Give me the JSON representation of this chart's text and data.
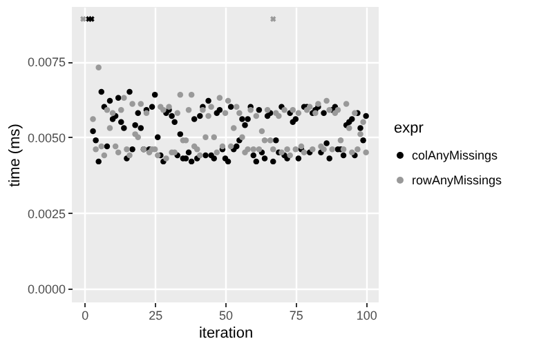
{
  "chart_data": {
    "type": "scatter",
    "xlabel": "iteration",
    "ylabel": "time (ms)",
    "legend_title": "expr",
    "legend": "right",
    "grid": true,
    "marker": "circle",
    "xlim": [
      -4.5,
      104.5
    ],
    "xticks": [
      0,
      25,
      50,
      75,
      100
    ],
    "ylim": [
      -0.00045,
      0.0093
    ],
    "yticks": [
      {
        "value": 0,
        "label": "0.0000"
      },
      {
        "value": 0.0025,
        "label": "0.0025"
      },
      {
        "value": 0.005,
        "label": "0.0050"
      },
      {
        "value": 0.0075,
        "label": "0.0075"
      }
    ],
    "series": [
      {
        "name": "colAnyMissings",
        "color": "#000000",
        "x": [
          3,
          4,
          5,
          6,
          7,
          8,
          9,
          10,
          11,
          12,
          13,
          14,
          15,
          16,
          17,
          18,
          19,
          20,
          21,
          22,
          23,
          24,
          25,
          26,
          27,
          28,
          29,
          30,
          31,
          32,
          33,
          34,
          35,
          36,
          37,
          38,
          39,
          40,
          41,
          42,
          43,
          44,
          45,
          46,
          47,
          48,
          49,
          50,
          51,
          52,
          53,
          54,
          55,
          56,
          57,
          58,
          59,
          60,
          61,
          62,
          63,
          64,
          65,
          66,
          67,
          68,
          69,
          70,
          71,
          72,
          73,
          74,
          75,
          76,
          77,
          78,
          79,
          80,
          81,
          82,
          83,
          84,
          85,
          86,
          87,
          88,
          89,
          90,
          91,
          92,
          93,
          94,
          95,
          96,
          97,
          98,
          99,
          100
        ],
        "values": [
          0.0052,
          0.0049,
          0.0042,
          0.0065,
          0.006,
          0.0047,
          0.0062,
          0.0056,
          0.0057,
          0.0063,
          0.0055,
          0.0053,
          0.0043,
          0.0065,
          0.0046,
          0.0054,
          0.0058,
          0.0053,
          0.0046,
          0.0059,
          0.0046,
          0.006,
          0.0064,
          0.005,
          0.0044,
          0.0042,
          0.0058,
          0.0059,
          0.0057,
          0.0055,
          0.0044,
          0.0051,
          0.0043,
          0.0043,
          0.0045,
          0.0042,
          0.0056,
          0.0043,
          0.0057,
          0.006,
          0.0044,
          0.0062,
          0.0044,
          0.0043,
          0.0058,
          0.0059,
          0.0046,
          0.0043,
          0.0042,
          0.006,
          0.0046,
          0.0047,
          0.0049,
          0.0056,
          0.0054,
          0.0056,
          0.006,
          0.0044,
          0.0042,
          0.0059,
          0.0045,
          0.0043,
          0.0057,
          0.0058,
          0.0042,
          0.0049,
          0.0045,
          0.006,
          0.0044,
          0.0043,
          0.0058,
          0.0055,
          0.0056,
          0.0043,
          0.0046,
          0.006,
          0.006,
          0.0045,
          0.0058,
          0.0059,
          0.006,
          0.0045,
          0.0058,
          0.0048,
          0.0043,
          0.0059,
          0.006,
          0.0046,
          0.0046,
          0.0044,
          0.0054,
          0.0055,
          0.0056,
          0.0044,
          0.0058,
          0.0053,
          0.0049,
          0.0057
        ]
      },
      {
        "name": "rowAnyMissings",
        "color": "#999999",
        "x": [
          3,
          4,
          5,
          6,
          7,
          8,
          9,
          10,
          11,
          12,
          13,
          14,
          15,
          16,
          17,
          18,
          19,
          20,
          21,
          22,
          23,
          24,
          25,
          26,
          27,
          28,
          29,
          30,
          31,
          32,
          33,
          34,
          35,
          36,
          37,
          38,
          39,
          40,
          41,
          42,
          43,
          44,
          45,
          46,
          47,
          48,
          49,
          50,
          51,
          52,
          53,
          54,
          55,
          56,
          57,
          58,
          59,
          60,
          61,
          62,
          63,
          64,
          65,
          66,
          67,
          68,
          69,
          70,
          71,
          72,
          73,
          74,
          75,
          76,
          77,
          78,
          79,
          80,
          81,
          82,
          83,
          84,
          85,
          86,
          87,
          88,
          89,
          90,
          91,
          92,
          93,
          94,
          95,
          96,
          97,
          98,
          99,
          100
        ],
        "values": [
          0.0056,
          0.0046,
          0.0073,
          0.0047,
          0.0044,
          0.0059,
          0.0053,
          0.0058,
          0.0047,
          0.0045,
          0.0059,
          0.0063,
          0.0046,
          0.0044,
          0.0061,
          0.0051,
          0.005,
          0.0061,
          0.0046,
          0.0058,
          0.0045,
          0.0046,
          0.0046,
          0.0044,
          0.006,
          0.0059,
          0.0043,
          0.006,
          0.0045,
          0.0045,
          0.0058,
          0.0064,
          0.0049,
          0.0049,
          0.0059,
          0.0064,
          0.0047,
          0.0046,
          0.0044,
          0.0059,
          0.005,
          0.0057,
          0.006,
          0.005,
          0.0045,
          0.0063,
          0.0047,
          0.0058,
          0.0062,
          0.0047,
          0.0053,
          0.006,
          0.0058,
          0.005,
          0.0045,
          0.0046,
          0.0059,
          0.0046,
          0.0057,
          0.0046,
          0.0052,
          0.0049,
          0.0059,
          0.0049,
          0.0046,
          0.0058,
          0.0057,
          0.0045,
          0.0059,
          0.0046,
          0.0044,
          0.0059,
          0.0046,
          0.0058,
          0.0047,
          0.0045,
          0.0059,
          0.006,
          0.0046,
          0.0058,
          0.0061,
          0.0047,
          0.0046,
          0.0062,
          0.0059,
          0.0046,
          0.0058,
          0.0059,
          0.0049,
          0.0046,
          0.0061,
          0.0053,
          0.0045,
          0.0058,
          0.0046,
          0.0051,
          0.0055,
          0.0045
        ]
      },
      {
        "color": "#000000",
        "marker": "cross",
        "x": [
          1.5,
          2.5
        ],
        "values": [
          0.0089,
          0.0089
        ]
      },
      {
        "color": "#999999",
        "marker": "cross",
        "x": [
          -0.5,
          67
        ],
        "values": [
          0.0089,
          0.0089
        ]
      }
    ]
  }
}
